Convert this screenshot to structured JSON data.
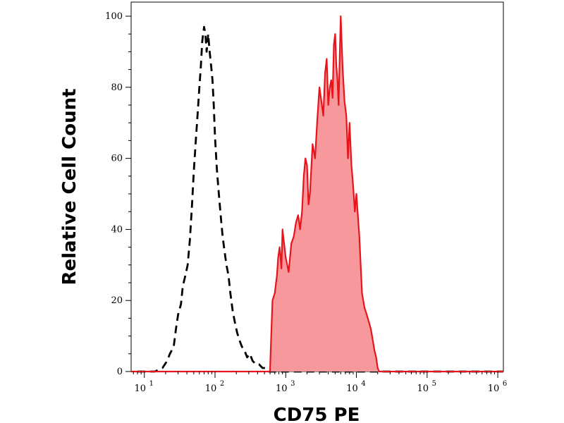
{
  "chart_data": {
    "type": "area",
    "title": "",
    "xlabel": "CD75 PE",
    "ylabel": "Relative Cell Count",
    "x_scale": "log",
    "xlim": [
      6.5,
      1200000
    ],
    "ylim": [
      0,
      100
    ],
    "grid": false,
    "y_ticks": [
      0,
      20,
      40,
      60,
      80,
      100
    ],
    "y_tick_labels": [
      "0",
      "20",
      "40",
      "60",
      "80",
      "100"
    ],
    "x_ticks": [
      10,
      100,
      1000,
      10000,
      100000,
      1000000
    ],
    "x_tick_base": "10",
    "x_tick_exponents": [
      "1",
      "2",
      "3",
      "4",
      "5",
      "6"
    ],
    "colors": {
      "control": "#000000",
      "stained_line": "#e8141b",
      "stained_fill": "#f7999c"
    },
    "series": [
      {
        "style": "dashed-black-outline",
        "x": [
          8,
          14,
          18,
          21,
          23,
          26,
          28,
          30,
          33,
          35,
          38,
          41,
          44,
          47,
          50,
          53,
          56,
          60,
          63,
          66,
          70,
          73,
          76,
          80,
          84,
          88,
          92,
          96,
          100,
          106,
          112,
          120,
          128,
          136,
          145,
          155,
          165,
          178,
          190,
          205,
          220,
          240,
          260,
          285,
          310,
          340,
          380,
          420,
          470,
          520,
          580,
          650,
          700,
          800,
          1000,
          2000,
          5000,
          10000,
          50000,
          100000,
          1000000,
          1200000
        ],
        "y": [
          0,
          0,
          1,
          3,
          5,
          7,
          12,
          16,
          19,
          24,
          27,
          30,
          37,
          46,
          56,
          64,
          71,
          80,
          86,
          93,
          97,
          95,
          90,
          95,
          90,
          86,
          82,
          75,
          66,
          57,
          51,
          44,
          38,
          34,
          30,
          27,
          22,
          17,
          14,
          11,
          9,
          7,
          6,
          4,
          5,
          3,
          2,
          2,
          1,
          1,
          0,
          0,
          0,
          0,
          0,
          0,
          0,
          0,
          0,
          0,
          0,
          0
        ]
      },
      {
        "style": "solid-red-filled",
        "x": [
          6.5,
          100,
          600,
          610,
          650,
          700,
          750,
          780,
          820,
          870,
          900,
          950,
          1000,
          1050,
          1100,
          1200,
          1300,
          1400,
          1500,
          1600,
          1700,
          1800,
          1900,
          2000,
          2100,
          2200,
          2400,
          2600,
          2800,
          3000,
          3200,
          3400,
          3600,
          3800,
          4000,
          4200,
          4400,
          4600,
          4800,
          5000,
          5200,
          5400,
          5600,
          5800,
          6000,
          6400,
          6800,
          7200,
          7600,
          8000,
          8500,
          9000,
          9500,
          10000,
          11000,
          12000,
          13000,
          14000,
          15000,
          16000,
          17000,
          18000,
          19000,
          20000,
          21000,
          30000,
          100000,
          1000000,
          1200000
        ],
        "y": [
          0,
          0,
          0,
          5,
          20,
          22,
          27,
          32,
          35,
          29,
          40,
          36,
          32,
          30,
          28,
          36,
          38,
          42,
          44,
          40,
          45,
          55,
          60,
          58,
          47,
          50,
          64,
          60,
          71,
          80,
          76,
          72,
          84,
          88,
          75,
          80,
          82,
          77,
          92,
          95,
          86,
          82,
          75,
          88,
          100,
          85,
          76,
          72,
          60,
          70,
          58,
          52,
          45,
          50,
          38,
          22,
          18,
          16,
          14,
          12,
          9,
          6,
          4,
          1,
          0,
          0,
          0,
          0,
          0
        ]
      }
    ]
  }
}
